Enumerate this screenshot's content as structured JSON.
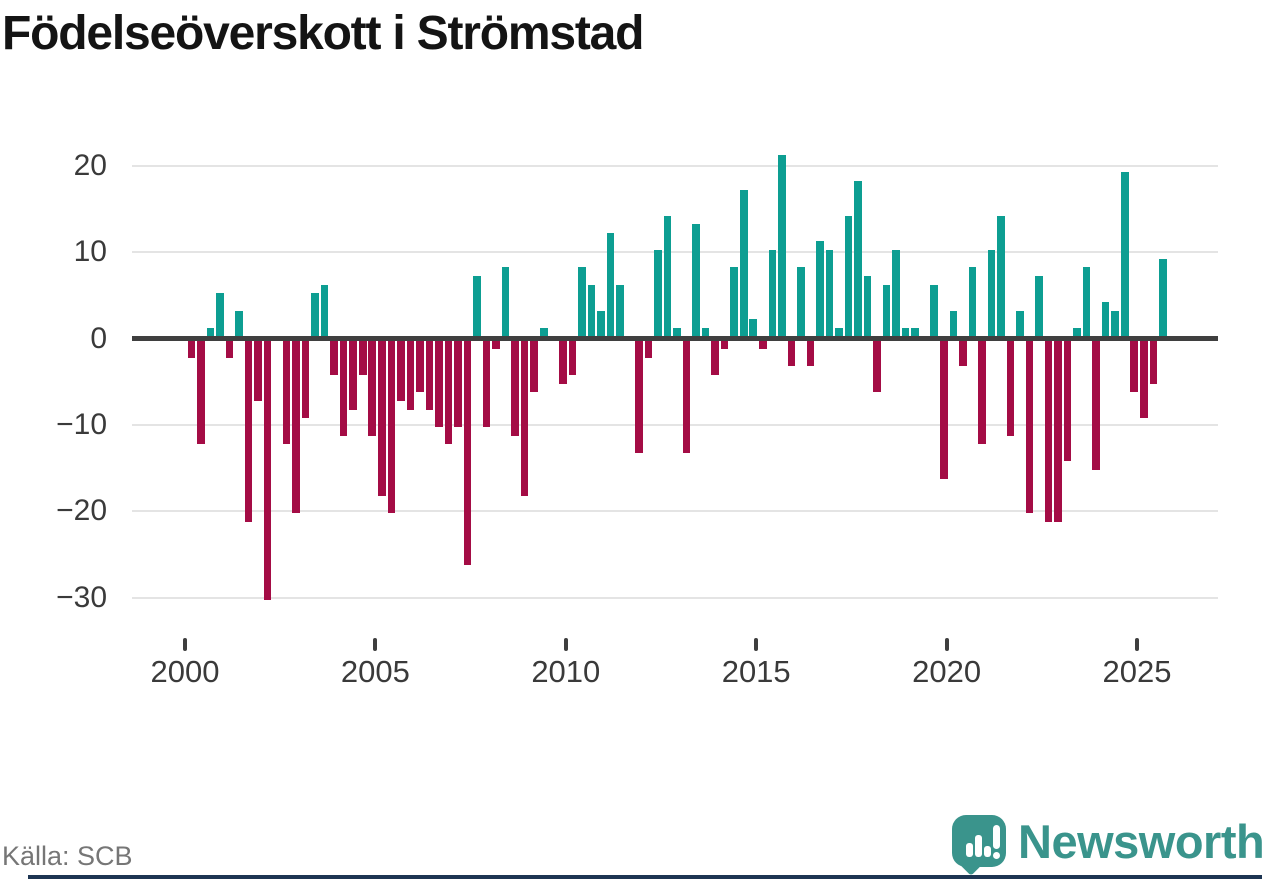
{
  "header": {
    "title": "Födelseöverskott i Strömstad"
  },
  "footer": {
    "source": "Källa: SCB"
  },
  "branding": {
    "logo_text": "Newsworthy",
    "logo_icon": "speech-bubble-bar-chart-exclamation-icon",
    "brand_teal": "#3a948c",
    "footer_strip_color": "#1d3552"
  },
  "colors": {
    "positive_bar": "#0d9e92",
    "negative_bar": "#a40c45",
    "axis": "#3f3f3f",
    "grid": "#e4e4e4",
    "tick_label": "#3a3a3a",
    "title": "#141414",
    "source_text": "#767676",
    "background": "#ffffff"
  },
  "chart_data": {
    "type": "bar",
    "title": "Födelseöverskott i Strömstad",
    "x_unit": "quarter",
    "start_year": 2000,
    "start_quarter": 1,
    "end_year": 2025,
    "end_quarter": 3,
    "values": [
      -2,
      -12,
      1,
      5,
      -2,
      3,
      -21,
      -7,
      -30,
      0,
      -12,
      -20,
      -9,
      5,
      6,
      -4,
      -11,
      -8,
      -4,
      -11,
      -18,
      -20,
      -7,
      -8,
      -6,
      -8,
      -10,
      -12,
      -10,
      -26,
      7,
      -10,
      -1,
      8,
      -11,
      -18,
      -6,
      1,
      0,
      -5,
      -4,
      8,
      6,
      3,
      12,
      6,
      0,
      -13,
      -2,
      10,
      14,
      1,
      -13,
      13,
      1,
      -4,
      -1,
      8,
      17,
      2,
      -1,
      10,
      21,
      -3,
      8,
      -3,
      11,
      10,
      1,
      14,
      18,
      7,
      -6,
      6,
      10,
      1,
      1,
      0,
      6,
      -16,
      3,
      -3,
      8,
      -12,
      10,
      14,
      -11,
      3,
      -20,
      7,
      -21,
      -21,
      -14,
      1,
      8,
      -15,
      4,
      3,
      19,
      -6,
      -9,
      -5,
      9
    ],
    "year_ticks": [
      2000,
      2005,
      2010,
      2015,
      2020,
      2025
    ],
    "y_ticks": [
      20,
      10,
      0,
      -10,
      -20,
      -30
    ],
    "y_tick_labels": [
      "20",
      "10",
      "0",
      "−10",
      "−20",
      "−30"
    ],
    "ylim": [
      -30,
      21
    ],
    "grid": "horizontal",
    "legend": "none",
    "positive_color": "#0d9e92",
    "negative_color": "#a40c45"
  }
}
